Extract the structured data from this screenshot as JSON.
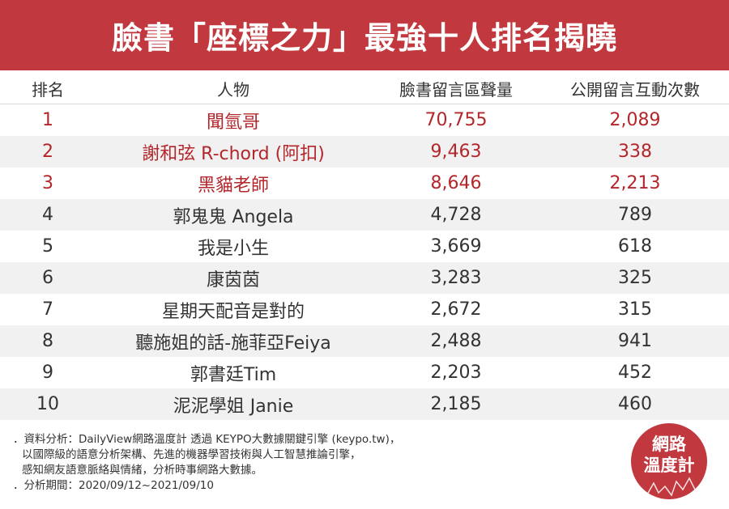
{
  "title": "臉書「座標之力」最強十人排名揭曉",
  "columns": {
    "rank": "排名",
    "person": "人物",
    "fb_volume": "臉書留言區聲量",
    "interactions": "公開留言互動次數"
  },
  "rows": [
    {
      "rank": "1",
      "person": "聞氫哥",
      "fb_volume": "70,755",
      "interactions": "2,089"
    },
    {
      "rank": "2",
      "person": "謝和弦 R-chord (阿扣)",
      "fb_volume": "9,463",
      "interactions": "338"
    },
    {
      "rank": "3",
      "person": "黑貓老師",
      "fb_volume": "8,646",
      "interactions": "2,213"
    },
    {
      "rank": "4",
      "person": "郭鬼鬼 Angela",
      "fb_volume": "4,728",
      "interactions": "789"
    },
    {
      "rank": "5",
      "person": "我是小生",
      "fb_volume": "3,669",
      "interactions": "618"
    },
    {
      "rank": "6",
      "person": "康茵茵",
      "fb_volume": "3,283",
      "interactions": "325"
    },
    {
      "rank": "7",
      "person": "星期天配音是對的",
      "fb_volume": "2,672",
      "interactions": "315"
    },
    {
      "rank": "8",
      "person": "聽施姐的話-施菲亞Feiya",
      "fb_volume": "2,488",
      "interactions": "941"
    },
    {
      "rank": "9",
      "person": "郭書廷Tim",
      "fb_volume": "2,203",
      "interactions": "452"
    },
    {
      "rank": "10",
      "person": "泥泥學姐 Janie",
      "fb_volume": "2,185",
      "interactions": "460"
    }
  ],
  "footer": {
    "line1": "．資料分析：DailyView網路溫度計 透過 KEYPO大數據關鍵引擎 (keypo.tw)，",
    "line2": "以國際級的語意分析架構、先進的機器學習技術與人工智慧推論引擎，",
    "line3": "感知網友語意脈絡與情緒，分析時事網路大數據。",
    "line4": "．分析期間：2020/09/12~2021/09/10"
  },
  "logo": {
    "line1": "網路",
    "line2": "溫度計"
  },
  "colors": {
    "banner": "#c1393e",
    "highlight_text": "#b3262b",
    "shaded_row": "#f1f1f1"
  }
}
